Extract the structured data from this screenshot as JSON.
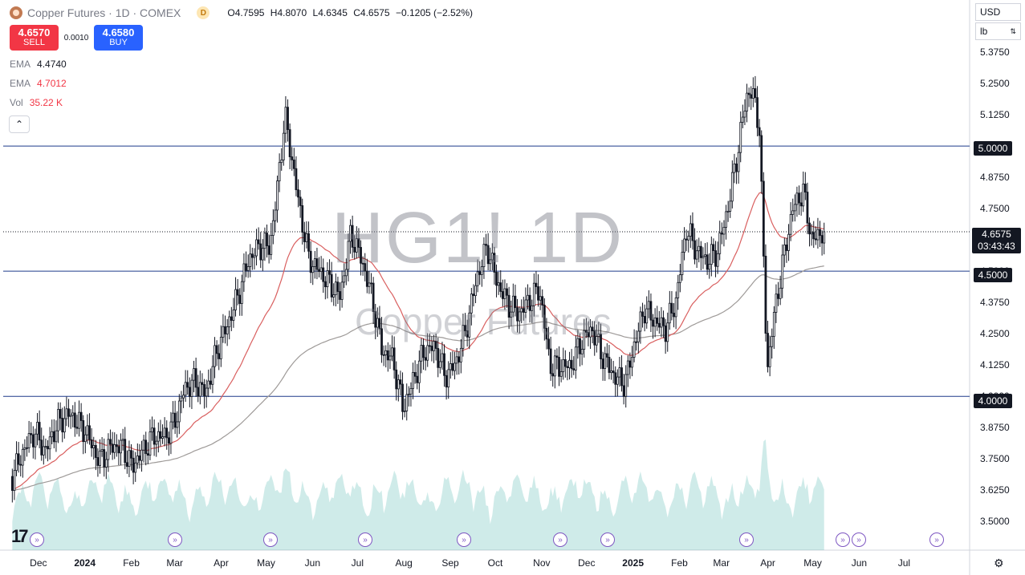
{
  "header": {
    "title": "Copper Futures · 1D · COMEX",
    "interval_badge": "D",
    "ohlc": {
      "o_label": "O",
      "o": "4.7595",
      "h_label": "H",
      "h": "4.8070",
      "l_label": "L",
      "l": "4.6345",
      "c_label": "C",
      "c": "4.6575",
      "change": "−0.1205 (−2.52%)"
    }
  },
  "trade": {
    "sell_price": "4.6570",
    "sell_label": "SELL",
    "spread": "0.0010",
    "buy_price": "4.6580",
    "buy_label": "BUY"
  },
  "indicators": [
    {
      "name": "EMA",
      "value": "4.4740"
    },
    {
      "name": "EMA",
      "value": "4.7012"
    },
    {
      "name": "Vol",
      "value": "35.22 K"
    }
  ],
  "controls": {
    "currency": "USD",
    "unit": "lb",
    "collapse_icon": "chevron-up-icon",
    "settings_icon": "gear-icon"
  },
  "watermark": {
    "symbol": "HG1! 1D",
    "name": "Copper Futures"
  },
  "price_labels": {
    "current": "4.6575",
    "countdown": "03:43:43",
    "l5": "5.0000",
    "l45": "4.5000",
    "l4": "4.0000"
  },
  "events_icon": "arrow-circle-icon",
  "chart_data": {
    "type": "candlestick",
    "y_ticks": [
      "5.3750",
      "5.2500",
      "5.1250",
      "5.0000",
      "4.8750",
      "4.7500",
      "4.6250",
      "4.5000",
      "4.3750",
      "4.2500",
      "4.1250",
      "4.0000",
      "3.8750",
      "3.7500",
      "3.6250",
      "3.5000"
    ],
    "ylim": [
      3.44,
      5.42
    ],
    "x_ticks": [
      "Dec",
      "2024",
      "Feb",
      "Mar",
      "Apr",
      "May",
      "Jun",
      "Jul",
      "Aug",
      "Sep",
      "Oct",
      "Nov",
      "Dec",
      "2025",
      "Feb",
      "Mar",
      "Apr",
      "May",
      "Jun",
      "Jul"
    ],
    "horizontal_lines": [
      5.0,
      4.5,
      4.0
    ],
    "last_price": 4.6575,
    "close_path": [
      [
        "2023-11-20",
        3.68
      ],
      [
        "2023-11-28",
        3.79
      ],
      [
        "2023-12-05",
        3.86
      ],
      [
        "2023-12-12",
        3.78
      ],
      [
        "2023-12-20",
        3.89
      ],
      [
        "2023-12-28",
        3.93
      ],
      [
        "2024-01-08",
        3.86
      ],
      [
        "2024-01-17",
        3.74
      ],
      [
        "2024-01-25",
        3.8
      ],
      [
        "2024-02-01",
        3.8
      ],
      [
        "2024-02-08",
        3.72
      ],
      [
        "2024-02-15",
        3.78
      ],
      [
        "2024-02-22",
        3.84
      ],
      [
        "2024-03-01",
        3.84
      ],
      [
        "2024-03-07",
        3.89
      ],
      [
        "2024-03-14",
        4.03
      ],
      [
        "2024-03-21",
        4.06
      ],
      [
        "2024-03-28",
        4.01
      ],
      [
        "2024-04-05",
        4.19
      ],
      [
        "2024-04-12",
        4.29
      ],
      [
        "2024-04-19",
        4.41
      ],
      [
        "2024-04-26",
        4.55
      ],
      [
        "2024-05-03",
        4.6
      ],
      [
        "2024-05-10",
        4.6
      ],
      [
        "2024-05-14",
        4.78
      ],
      [
        "2024-05-20",
        5.12
      ],
      [
        "2024-05-22",
        5.05
      ],
      [
        "2024-05-29",
        4.78
      ],
      [
        "2024-06-05",
        4.55
      ],
      [
        "2024-06-12",
        4.5
      ],
      [
        "2024-06-19",
        4.45
      ],
      [
        "2024-06-26",
        4.4
      ],
      [
        "2024-07-03",
        4.65
      ],
      [
        "2024-07-10",
        4.55
      ],
      [
        "2024-07-17",
        4.4
      ],
      [
        "2024-07-24",
        4.18
      ],
      [
        "2024-07-31",
        4.15
      ],
      [
        "2024-08-07",
        3.95
      ],
      [
        "2024-08-14",
        4.07
      ],
      [
        "2024-08-21",
        4.18
      ],
      [
        "2024-08-28",
        4.2
      ],
      [
        "2024-09-04",
        4.08
      ],
      [
        "2024-09-11",
        4.13
      ],
      [
        "2024-09-18",
        4.27
      ],
      [
        "2024-09-25",
        4.47
      ],
      [
        "2024-10-02",
        4.6
      ],
      [
        "2024-10-09",
        4.45
      ],
      [
        "2024-10-16",
        4.37
      ],
      [
        "2024-10-23",
        4.33
      ],
      [
        "2024-10-30",
        4.38
      ],
      [
        "2024-11-06",
        4.43
      ],
      [
        "2024-11-13",
        4.12
      ],
      [
        "2024-11-20",
        4.12
      ],
      [
        "2024-11-27",
        4.12
      ],
      [
        "2024-12-04",
        4.22
      ],
      [
        "2024-12-11",
        4.27
      ],
      [
        "2024-12-18",
        4.16
      ],
      [
        "2024-12-26",
        4.08
      ],
      [
        "2025-01-02",
        4.05
      ],
      [
        "2025-01-08",
        4.2
      ],
      [
        "2025-01-15",
        4.35
      ],
      [
        "2025-01-22",
        4.3
      ],
      [
        "2025-01-29",
        4.27
      ],
      [
        "2025-02-05",
        4.38
      ],
      [
        "2025-02-12",
        4.67
      ],
      [
        "2025-02-19",
        4.58
      ],
      [
        "2025-02-26",
        4.54
      ],
      [
        "2025-03-05",
        4.58
      ],
      [
        "2025-03-12",
        4.76
      ],
      [
        "2025-03-19",
        5.0
      ],
      [
        "2025-03-24",
        5.2
      ],
      [
        "2025-03-28",
        5.22
      ],
      [
        "2025-04-02",
        5.07
      ],
      [
        "2025-04-04",
        4.65
      ],
      [
        "2025-04-07",
        4.1
      ],
      [
        "2025-04-11",
        4.3
      ],
      [
        "2025-04-17",
        4.52
      ],
      [
        "2025-04-24",
        4.75
      ],
      [
        "2025-05-01",
        4.82
      ],
      [
        "2025-05-07",
        4.62
      ],
      [
        "2025-05-14",
        4.66
      ],
      [
        "2025-05-16",
        4.66
      ]
    ],
    "volume_series_visible": true,
    "ema_short_visible": true,
    "ema_long_visible": true
  }
}
